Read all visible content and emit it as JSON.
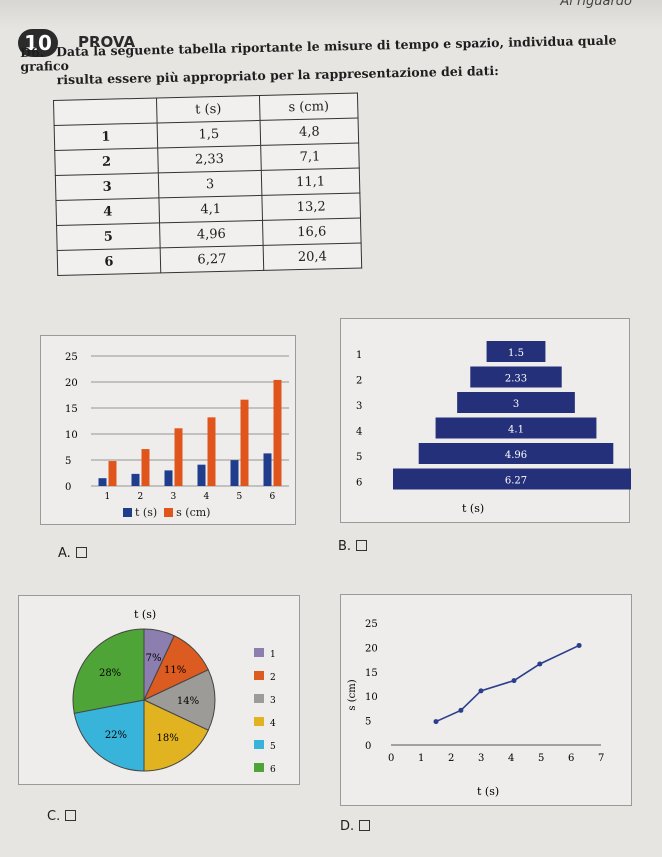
{
  "header": {
    "badge_number": "10",
    "badge_label": "PROVA",
    "corner_text": "Al riguardo"
  },
  "question": {
    "number": "D6.",
    "line1": "Data la seguente tabella riportante le misure di tempo e spazio, individua quale grafico",
    "line2": "risulta essere più appropriato per la rappresentazione dei dati:"
  },
  "table": {
    "headers": [
      "",
      "t (s)",
      "s (cm)"
    ],
    "rows": [
      [
        "1",
        "1,5",
        "4,8"
      ],
      [
        "2",
        "2,33",
        "7,1"
      ],
      [
        "3",
        "3",
        "11,1"
      ],
      [
        "4",
        "4,1",
        "13,2"
      ],
      [
        "5",
        "4,96",
        "16,6"
      ],
      [
        "6",
        "6,27",
        "20,4"
      ]
    ]
  },
  "options": {
    "a": "A.",
    "b": "B.",
    "c": "C.",
    "d": "D."
  },
  "colors": {
    "blue": "#1f3d8c",
    "orange": "#e0551c",
    "navy": "#25307a"
  },
  "chart_data": [
    {
      "type": "bar",
      "categories": [
        "1",
        "2",
        "3",
        "4",
        "5",
        "6"
      ],
      "series": [
        {
          "name": "t (s)",
          "values": [
            1.5,
            2.33,
            3,
            4.1,
            4.96,
            6.27
          ],
          "color": "#1f3d8c"
        },
        {
          "name": "s (cm)",
          "values": [
            4.8,
            7.1,
            11.1,
            13.2,
            16.6,
            20.4
          ],
          "color": "#e0551c"
        }
      ],
      "yticks": [
        "0",
        "5",
        "10",
        "15",
        "20",
        "25"
      ],
      "ylim": [
        0,
        25
      ],
      "legend": "bottom"
    },
    {
      "type": "bar",
      "orientation": "horizontal",
      "categories": [
        "1",
        "2",
        "3",
        "4",
        "5",
        "6"
      ],
      "values": [
        1.5,
        2.33,
        3,
        4.1,
        4.96,
        6.27
      ],
      "labels": [
        "1.5",
        "2.33",
        "3",
        "4.1",
        "4.96",
        "6.27"
      ],
      "xlabel": "t (s)",
      "color": "#25307a"
    },
    {
      "type": "pie",
      "title": "t (s)",
      "categories": [
        "1",
        "2",
        "3",
        "4",
        "5",
        "6"
      ],
      "labels": [
        "7%",
        "11%",
        "14%",
        "18%",
        "22%",
        "28%"
      ],
      "values": [
        7,
        11,
        14,
        18,
        22,
        28
      ],
      "colors": [
        "#8c7fb0",
        "#dc5b20",
        "#9c9b97",
        "#e2b320",
        "#38b3d9",
        "#4fa437"
      ],
      "legend": "right"
    },
    {
      "type": "line",
      "x": [
        1.5,
        2.33,
        3,
        4.1,
        4.96,
        6.27
      ],
      "y": [
        4.8,
        7.1,
        11.1,
        13.2,
        16.6,
        20.4
      ],
      "xticks": [
        "0",
        "1",
        "2",
        "3",
        "4",
        "5",
        "6",
        "7"
      ],
      "yticks": [
        "0",
        "5",
        "10",
        "15",
        "20",
        "25"
      ],
      "xlim": [
        0,
        7
      ],
      "ylim": [
        0,
        25
      ],
      "xlabel": "t (s)",
      "ylabel": "s (cm)",
      "color": "#2b3e8c"
    }
  ]
}
